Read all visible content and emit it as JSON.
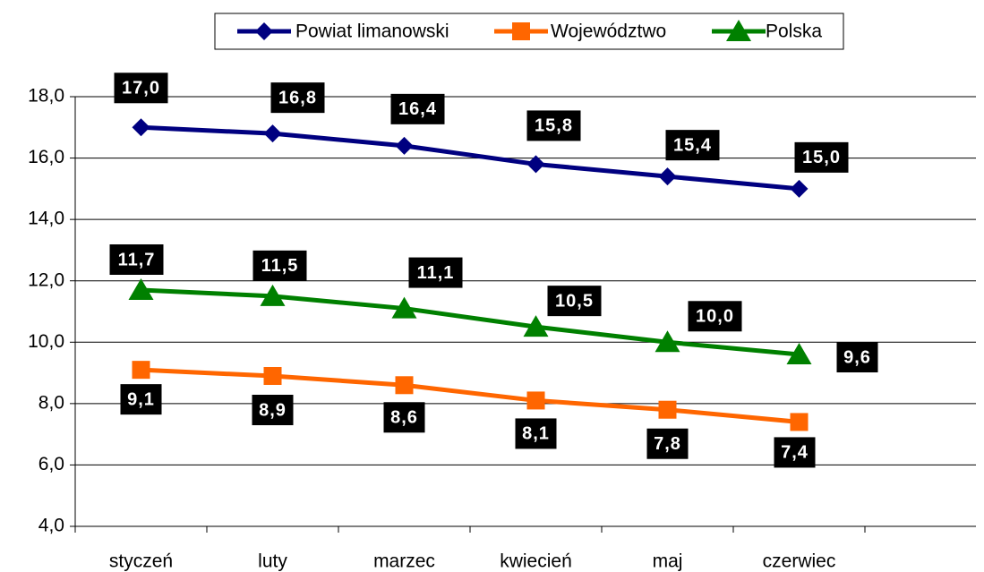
{
  "chart_data": {
    "type": "line",
    "categories": [
      "styczeń",
      "luty",
      "marzec",
      "kwiecień",
      "maj",
      "czerwiec"
    ],
    "series": [
      {
        "name": "Powiat limanowski",
        "color": "#000080",
        "marker": "diamond",
        "values": [
          17.0,
          16.8,
          16.4,
          15.8,
          15.4,
          15.0
        ],
        "value_labels": [
          "17,0",
          "16,8",
          "16,4",
          "15,8",
          "15,4",
          "15,0"
        ]
      },
      {
        "name": "Województwo",
        "color": "#ff6600",
        "marker": "square",
        "values": [
          9.1,
          8.9,
          8.6,
          8.1,
          7.8,
          7.4
        ],
        "value_labels": [
          "9,1",
          "8,9",
          "8,6",
          "8,1",
          "7,8",
          "7,4"
        ]
      },
      {
        "name": "Polska",
        "color": "#008000",
        "marker": "triangle",
        "values": [
          11.7,
          11.5,
          11.1,
          10.5,
          10.0,
          9.6
        ],
        "value_labels": [
          "11,7",
          "11,5",
          "11,1",
          "10,5",
          "10,0",
          "9,6"
        ]
      }
    ],
    "ylim": [
      4,
      18
    ],
    "yticks": [
      {
        "value": 4,
        "label": "4,0"
      },
      {
        "value": 6,
        "label": "6,0"
      },
      {
        "value": 8,
        "label": "8,0"
      },
      {
        "value": 10,
        "label": "10,0"
      },
      {
        "value": 12,
        "label": "12,0"
      },
      {
        "value": 14,
        "label": "14,0"
      },
      {
        "value": 16,
        "label": "16,0"
      },
      {
        "value": 18,
        "label": "18,0"
      }
    ],
    "grid": true,
    "legend": "top"
  }
}
